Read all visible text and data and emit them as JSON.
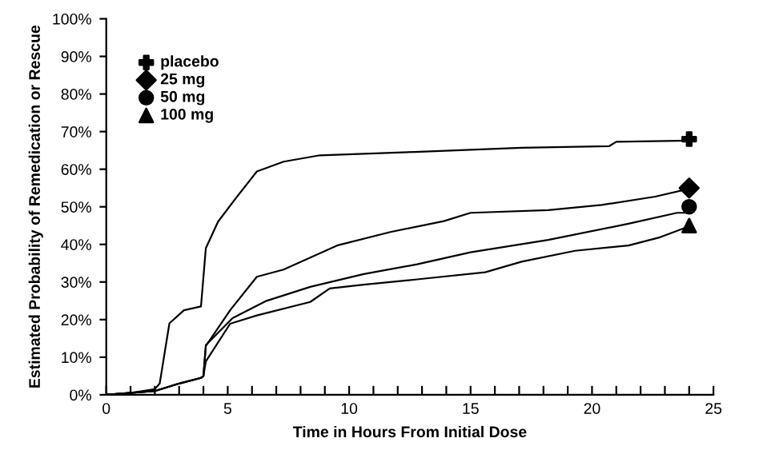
{
  "chart_data": {
    "type": "line",
    "xlabel": "Time in Hours From Initial Dose",
    "ylabel": "Estimated Probability of Remedication or Rescue",
    "xlim": [
      0,
      25
    ],
    "xticks": [
      0,
      {
        "value": 1,
        "label": null
      },
      {
        "value": 2,
        "label": null
      },
      {
        "value": 3,
        "label": null
      },
      {
        "value": 4,
        "label": null
      },
      5,
      {
        "value": 6,
        "label": null
      },
      {
        "value": 7,
        "label": null
      },
      {
        "value": 8,
        "label": null
      },
      {
        "value": 9,
        "label": null
      },
      10,
      {
        "value": 11,
        "label": null
      },
      {
        "value": 12,
        "label": null
      },
      {
        "value": 13,
        "label": null
      },
      {
        "value": 14,
        "label": null
      },
      15,
      {
        "value": 16,
        "label": null
      },
      {
        "value": 17,
        "label": null
      },
      {
        "value": 18,
        "label": null
      },
      {
        "value": 19,
        "label": null
      },
      20,
      {
        "value": 21,
        "label": null
      },
      {
        "value": 22,
        "label": null
      },
      {
        "value": 23,
        "label": null
      },
      {
        "value": 24,
        "label": null
      },
      25
    ],
    "ylim": [
      0,
      100
    ],
    "yticks": [
      {
        "value": 0,
        "label": "0%"
      },
      {
        "value": 10,
        "label": "10%"
      },
      {
        "value": 20,
        "label": "20%"
      },
      {
        "value": 30,
        "label": "30%"
      },
      {
        "value": 40,
        "label": "40%"
      },
      {
        "value": 50,
        "label": "50%"
      },
      {
        "value": 60,
        "label": "60%"
      },
      {
        "value": 70,
        "label": "70%"
      },
      {
        "value": 80,
        "label": "80%"
      },
      {
        "value": 90,
        "label": "90%"
      },
      {
        "value": 100,
        "label": "100%"
      }
    ],
    "legend": "top left",
    "line_style": "solid",
    "series": [
      {
        "color": "#000000",
        "x": [
          0,
          1,
          2,
          2.2,
          2.6,
          3.2,
          3.9,
          4.1,
          4.6,
          5.3,
          6.2,
          7.3,
          8.8,
          12.7,
          17.1,
          20.7,
          21,
          24
        ],
        "values": [
          0,
          0.5,
          1.5,
          3,
          19,
          22.5,
          23.5,
          39,
          46,
          52,
          59.4,
          62,
          63.7,
          64.6,
          65.7,
          66.1,
          67.3,
          67.6
        ]
      },
      {
        "color": "#000000",
        "x": [
          0,
          2,
          3,
          3.9,
          4.0,
          4.1,
          5.1,
          6.2,
          7.3,
          9.5,
          11.7,
          13.9,
          15,
          18.2,
          20.4,
          22.6,
          24
        ],
        "values": [
          0,
          1,
          3,
          4.5,
          5,
          13,
          22.5,
          31.4,
          33.3,
          39.7,
          43.3,
          46.2,
          48.4,
          49.1,
          50.5,
          52.7,
          54.8
        ]
      },
      {
        "color": "#000000",
        "x": [
          0,
          2,
          3,
          3.9,
          4.0,
          4.1,
          5.2,
          6.6,
          8.4,
          10.6,
          12.8,
          15,
          18.2,
          21.5,
          23.5,
          24
        ],
        "values": [
          0,
          1,
          3,
          4.5,
          5,
          13.2,
          20.4,
          25,
          28.7,
          32.1,
          34.7,
          37.9,
          41.2,
          45.5,
          48.4,
          48.4
        ]
      },
      {
        "color": "#000000",
        "x": [
          0,
          2,
          3,
          3.9,
          4.0,
          4.1,
          5.1,
          6.2,
          8.4,
          9.2,
          10.6,
          12.8,
          15.6,
          17.1,
          19.3,
          21.5,
          22.8,
          24
        ],
        "values": [
          0,
          1,
          3,
          4.5,
          5,
          8.9,
          18.9,
          21.1,
          24.7,
          28.3,
          29.3,
          30.7,
          32.6,
          35.4,
          38.3,
          39.7,
          41.9,
          44.8
        ]
      },
      {
        "type": "scatter",
        "name": "placebo",
        "color": "#000000",
        "marker": "cross",
        "x": [
          24
        ],
        "values": [
          68
        ]
      },
      {
        "type": "scatter",
        "name": "25 mg",
        "color": "#000000",
        "marker": "diamond",
        "x": [
          24
        ],
        "values": [
          55
        ]
      },
      {
        "type": "scatter",
        "name": "50 mg",
        "color": "#000000",
        "marker": "circle",
        "x": [
          24
        ],
        "values": [
          50
        ]
      },
      {
        "type": "scatter",
        "name": "100 mg",
        "color": "#000000",
        "marker": "triangle",
        "x": [
          24
        ],
        "values": [
          45
        ]
      }
    ]
  }
}
